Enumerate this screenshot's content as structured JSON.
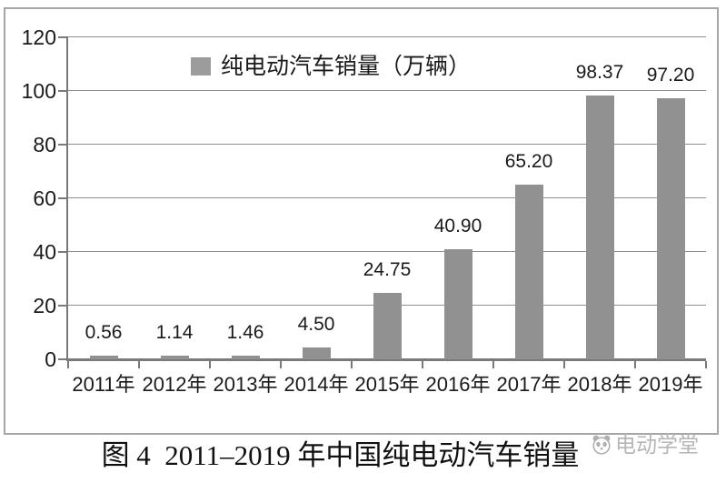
{
  "chart_data": {
    "type": "bar",
    "title": "图 4  2011–2019 年中国纯电动汽车销量",
    "legend": "纯电动汽车销量（万辆）",
    "categories": [
      "2011年",
      "2012年",
      "2013年",
      "2014年",
      "2015年",
      "2016年",
      "2017年",
      "2018年",
      "2019年"
    ],
    "values": [
      0.56,
      1.14,
      1.46,
      4.5,
      24.75,
      40.9,
      65.2,
      98.37,
      97.2
    ],
    "value_labels": [
      "0.56",
      "1.14",
      "1.46",
      "4.50",
      "24.75",
      "40.90",
      "65.20",
      "98.37",
      "97.20"
    ],
    "xlabel": "",
    "ylabel": "",
    "ylim": [
      0,
      120
    ],
    "yticks": [
      0,
      20,
      40,
      60,
      80,
      100,
      120
    ],
    "grid": true,
    "legend_position": "top-center",
    "bar_color": "#919191"
  },
  "watermark": {
    "text": "电动学堂"
  },
  "colors": {
    "bar": "#919191",
    "legend_swatch": "#9c9c9c",
    "gridline": "#8f8f8f",
    "axis": "#7a7a7a",
    "frame_border": "#a6a6a6",
    "text": "#1a1a1a",
    "watermark": "#b5b5b5"
  }
}
